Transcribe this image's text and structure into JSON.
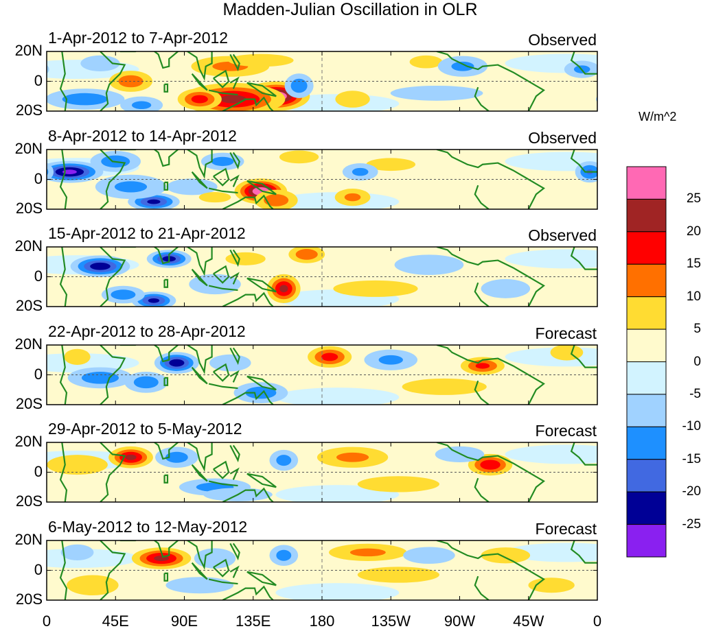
{
  "chart_data": {
    "type": "heatmap",
    "title": "Madden-Julian Oscillation in OLR",
    "xlabel": "",
    "ylabel": "",
    "x_range_lon_east": [
      0,
      360
    ],
    "y_range_lat": [
      -20,
      20
    ],
    "x_ticks": [
      "0",
      "45E",
      "90E",
      "135E",
      "180",
      "135W",
      "90W",
      "45W",
      "0"
    ],
    "y_ticks": [
      "20N",
      "0",
      "20S"
    ],
    "colorbar": {
      "unit": "W/m^2",
      "levels": [
        "25",
        "20",
        "15",
        "10",
        "5",
        "0",
        "-5",
        "-10",
        "-15",
        "-20",
        "-25"
      ],
      "colors": [
        "#ff69b4",
        "#a02424",
        "#ff0000",
        "#ff7000",
        "#ffdc32",
        "#fffacd",
        "#d2f3ff",
        "#a0d2ff",
        "#1e90ff",
        "#4169e1",
        "#000096",
        "#8a20f0"
      ]
    },
    "panels": [
      {
        "title": "1-Apr-2012 to 7-Apr-2012",
        "label": "Observed",
        "features": [
          [
            150,
            -10,
            30,
            18,
            8
          ],
          [
            122,
            -12,
            22,
            28,
            9
          ],
          [
            100,
            -12,
            18,
            12,
            6
          ],
          [
            55,
            0,
            14,
            12,
            6
          ],
          [
            120,
            10,
            12,
            22,
            6
          ],
          [
            165,
            -3,
            -14,
            8,
            7
          ],
          [
            25,
            -12,
            -14,
            22,
            6
          ],
          [
            62,
            -16,
            -12,
            12,
            5
          ],
          [
            35,
            12,
            -8,
            12,
            5
          ],
          [
            200,
            -12,
            10,
            10,
            5
          ],
          [
            248,
            13,
            8,
            10,
            4
          ],
          [
            272,
            10,
            -12,
            14,
            6
          ],
          [
            255,
            -8,
            -7,
            30,
            5
          ],
          [
            350,
            8,
            -12,
            10,
            5
          ],
          [
            140,
            14,
            8,
            20,
            4
          ]
        ]
      },
      {
        "title": "8-Apr-2012 to 14-Apr-2012",
        "label": "Observed",
        "features": [
          [
            140,
            -8,
            30,
            14,
            7
          ],
          [
            150,
            -14,
            14,
            12,
            6
          ],
          [
            15,
            5,
            -27,
            18,
            6
          ],
          [
            45,
            12,
            -14,
            14,
            6
          ],
          [
            70,
            -15,
            -22,
            14,
            5
          ],
          [
            55,
            -5,
            -12,
            20,
            7
          ],
          [
            115,
            12,
            -13,
            12,
            5
          ],
          [
            95,
            -5,
            -9,
            15,
            5
          ],
          [
            165,
            15,
            8,
            12,
            4
          ],
          [
            200,
            -12,
            12,
            10,
            5
          ],
          [
            225,
            10,
            8,
            15,
            4
          ],
          [
            205,
            5,
            -12,
            10,
            5
          ],
          [
            355,
            5,
            -16,
            8,
            6
          ],
          [
            110,
            -12,
            6,
            12,
            4
          ]
        ]
      },
      {
        "title": "15-Apr-2012 to 21-Apr-2012",
        "label": "Observed",
        "features": [
          [
            155,
            -8,
            22,
            9,
            8
          ],
          [
            170,
            15,
            15,
            10,
            5
          ],
          [
            35,
            7,
            -24,
            16,
            6
          ],
          [
            80,
            12,
            -23,
            12,
            5
          ],
          [
            70,
            -16,
            -22,
            12,
            5
          ],
          [
            50,
            -12,
            -14,
            12,
            5
          ],
          [
            110,
            -5,
            -10,
            15,
            6
          ],
          [
            215,
            -8,
            9,
            25,
            5
          ],
          [
            250,
            8,
            -10,
            20,
            6
          ],
          [
            300,
            -8,
            -8,
            15,
            6
          ],
          [
            130,
            12,
            6,
            15,
            5
          ]
        ]
      },
      {
        "title": "22-Apr-2012 to 28-Apr-2012",
        "label": "Forecast",
        "features": [
          [
            85,
            8,
            -24,
            12,
            6
          ],
          [
            35,
            -2,
            -14,
            18,
            6
          ],
          [
            65,
            -5,
            -14,
            12,
            6
          ],
          [
            140,
            -12,
            -14,
            15,
            6
          ],
          [
            185,
            12,
            18,
            12,
            6
          ],
          [
            285,
            6,
            17,
            12,
            5
          ],
          [
            260,
            -8,
            9,
            25,
            5
          ],
          [
            225,
            10,
            -12,
            15,
            6
          ],
          [
            120,
            8,
            -10,
            12,
            5
          ],
          [
            20,
            12,
            8,
            8,
            5
          ],
          [
            340,
            15,
            8,
            10,
            5
          ]
        ]
      },
      {
        "title": "29-Apr-2012 to 5-May-2012",
        "label": "Forecast",
        "features": [
          [
            55,
            10,
            22,
            12,
            6
          ],
          [
            85,
            10,
            -13,
            12,
            6
          ],
          [
            110,
            -10,
            -13,
            20,
            5
          ],
          [
            155,
            8,
            -13,
            8,
            6
          ],
          [
            200,
            10,
            12,
            20,
            6
          ],
          [
            290,
            5,
            20,
            12,
            6
          ],
          [
            20,
            5,
            9,
            18,
            6
          ],
          [
            230,
            -8,
            8,
            25,
            5
          ],
          [
            270,
            12,
            -8,
            15,
            5
          ],
          [
            125,
            -15,
            -10,
            20,
            4
          ]
        ]
      },
      {
        "title": "6-May-2012 to 12-May-2012",
        "label": "Forecast",
        "features": [
          [
            75,
            8,
            22,
            16,
            6
          ],
          [
            110,
            8,
            -10,
            12,
            6
          ],
          [
            155,
            10,
            -13,
            8,
            6
          ],
          [
            210,
            12,
            12,
            22,
            5
          ],
          [
            230,
            -3,
            8,
            25,
            5
          ],
          [
            30,
            -10,
            10,
            15,
            6
          ],
          [
            20,
            12,
            -8,
            10,
            5
          ],
          [
            100,
            -10,
            -9,
            20,
            5
          ],
          [
            300,
            10,
            8,
            15,
            5
          ],
          [
            330,
            -10,
            7,
            15,
            5
          ],
          [
            250,
            10,
            -10,
            15,
            5
          ]
        ]
      }
    ]
  }
}
